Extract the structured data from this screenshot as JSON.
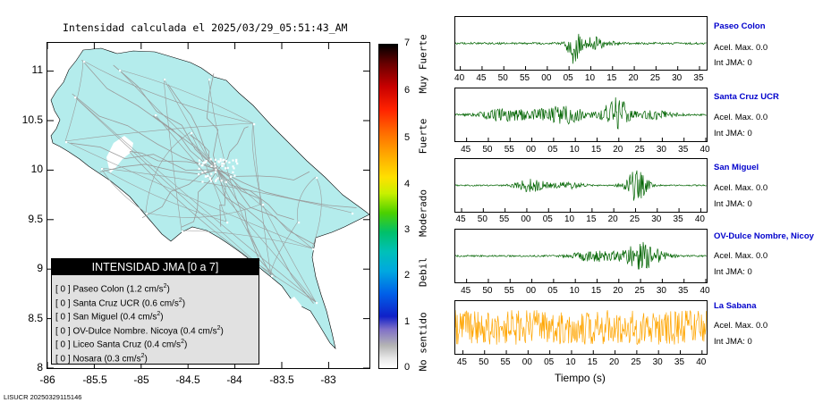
{
  "map": {
    "title": "Intensidad calculada el 2025/03/29_05:51:43_AM",
    "y_ticks": [
      "11",
      "10.5",
      "10",
      "9.5",
      "9",
      "8.5",
      "8"
    ],
    "x_ticks": [
      "-86",
      "-85.5",
      "-85",
      "-84.5",
      "-84",
      "-83.5",
      "-83"
    ],
    "land_color": "#b4ecec",
    "road_color": "#9a9a9a",
    "city_color": "#ffffff"
  },
  "legend": {
    "header": "INTENSIDAD JMA [0 a 7]",
    "rows": [
      {
        "prefix": "[ 0 ]  Paseo Colon (1.2 cm/s",
        "sup": "2",
        "suffix": ")"
      },
      {
        "prefix": "[ 0 ]  Santa Cruz UCR (0.6 cm/s",
        "sup": "2",
        "suffix": ")"
      },
      {
        "prefix": "[ 0 ]  San Miguel (0.4 cm/s",
        "sup": "2",
        "suffix": ")"
      },
      {
        "prefix": "[ 0 ]  OV-Dulce Nombre. Nicoya (0.4 cm/s",
        "sup": "2",
        "suffix": ")"
      },
      {
        "prefix": "[ 0 ]  Liceo Santa Cruz (0.4 cm/s",
        "sup": "2",
        "suffix": ")"
      },
      {
        "prefix": "[ 0 ]  Nosara (0.3 cm/s",
        "sup": "2",
        "suffix": ")"
      }
    ]
  },
  "colorbar": {
    "ticks": [
      "7",
      "6",
      "5",
      "4",
      "3",
      "2",
      "1",
      "0"
    ],
    "labels": [
      "Muy Fuerte",
      "Fuerte",
      "Moderado",
      "Debil",
      "No sentido"
    ]
  },
  "stations": [
    {
      "name": "Paseo Colon",
      "acc": "Acel. Max. 0.0",
      "int": "Int JMA: 0",
      "color": "#006400",
      "ticks": [
        "40",
        "45",
        "50",
        "55",
        "00",
        "05",
        "10",
        "15",
        "20",
        "25",
        "30",
        "35"
      ],
      "tick_offset": 0.02
    },
    {
      "name": "Santa Cruz UCR",
      "acc": "Acel. Max. 0.0",
      "int": "Int JMA: 0",
      "color": "#006400",
      "ticks": [
        "45",
        "50",
        "55",
        "00",
        "05",
        "10",
        "15",
        "20",
        "25",
        "30",
        "35",
        "40"
      ],
      "tick_offset": 0.045
    },
    {
      "name": "San Miguel",
      "acc": "Acel. Max. 0.0",
      "int": "Int JMA: 0",
      "color": "#006400",
      "ticks": [
        "45",
        "50",
        "55",
        "00",
        "05",
        "10",
        "15",
        "20",
        "25",
        "30",
        "35",
        "40"
      ],
      "tick_offset": 0.025
    },
    {
      "name": "OV-Dulce Nombre, Nicoya",
      "acc": "Acel. Max. 0.0",
      "int": "Int JMA: 0",
      "color": "#006400",
      "ticks": [
        "45",
        "50",
        "55",
        "00",
        "05",
        "10",
        "15",
        "20",
        "25",
        "30",
        "35",
        "40"
      ],
      "tick_offset": 0.045
    },
    {
      "name": "La Sabana",
      "acc": "Acel. Max. 0.0",
      "int": "Int JMA: 0",
      "color": "#ffa500",
      "ticks": [
        "45",
        "50",
        "55",
        "00",
        "05",
        "10",
        "15",
        "20",
        "25",
        "30",
        "35",
        "40"
      ],
      "tick_offset": 0.03
    }
  ],
  "time_axis_label": "Tiempo (s)",
  "footer": "LISUCR 20250329115146"
}
